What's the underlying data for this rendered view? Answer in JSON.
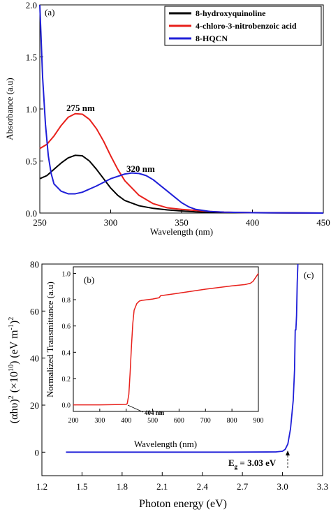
{
  "chart_data": [
    {
      "panel": "(a)",
      "type": "line",
      "xlabel": "Wavelength (nm)",
      "ylabel": "Absorbance (a.u)",
      "xlim": [
        250,
        450
      ],
      "ylim": [
        0,
        2.0
      ],
      "xticks": [
        250,
        300,
        350,
        400,
        450
      ],
      "yticks": [
        0.0,
        0.5,
        1.0,
        1.5,
        2.0
      ],
      "legend_position": "top-right",
      "series": [
        {
          "name": "8-hydroxyquinoline",
          "color": "#000000",
          "x": [
            250,
            255,
            260,
            265,
            270,
            275,
            280,
            285,
            290,
            295,
            300,
            305,
            310,
            320,
            330,
            340,
            350,
            360,
            380,
            400,
            450
          ],
          "y": [
            0.33,
            0.36,
            0.42,
            0.48,
            0.53,
            0.555,
            0.55,
            0.5,
            0.42,
            0.33,
            0.24,
            0.17,
            0.12,
            0.07,
            0.045,
            0.03,
            0.02,
            0.012,
            0.005,
            0.003,
            0.0
          ]
        },
        {
          "name": "4-chloro-3-nitrobenzoic acid",
          "color": "#e8201b",
          "x": [
            250,
            255,
            260,
            265,
            270,
            275,
            280,
            285,
            290,
            295,
            300,
            305,
            310,
            320,
            330,
            340,
            350,
            360,
            370,
            380,
            400,
            450
          ],
          "y": [
            0.62,
            0.66,
            0.74,
            0.84,
            0.92,
            0.955,
            0.95,
            0.9,
            0.81,
            0.69,
            0.55,
            0.42,
            0.31,
            0.17,
            0.09,
            0.05,
            0.035,
            0.025,
            0.015,
            0.008,
            0.004,
            0.0
          ]
        },
        {
          "name": "8-HQCN",
          "color": "#1f1fd8",
          "x": [
            250,
            252,
            254,
            256,
            258,
            260,
            265,
            270,
            275,
            280,
            290,
            300,
            310,
            315,
            320,
            325,
            330,
            340,
            350,
            355,
            360,
            370,
            380,
            400,
            450
          ],
          "y": [
            2.0,
            1.3,
            0.85,
            0.55,
            0.38,
            0.28,
            0.21,
            0.185,
            0.185,
            0.2,
            0.26,
            0.33,
            0.375,
            0.385,
            0.38,
            0.36,
            0.32,
            0.21,
            0.1,
            0.06,
            0.035,
            0.015,
            0.008,
            0.003,
            0.0
          ]
        }
      ],
      "annotations": [
        {
          "text": "275 nm",
          "x": 275,
          "y": 0.98
        },
        {
          "text": "320 nm",
          "x": 320,
          "y": 0.4
        }
      ]
    },
    {
      "panel": "(b)",
      "type": "line",
      "xlabel": "Wavelength (nm)",
      "ylabel": "Normalized Transmittance (a.u)",
      "xlim": [
        200,
        900
      ],
      "ylim": [
        -0.05,
        1.05
      ],
      "xticks": [
        200,
        300,
        400,
        500,
        600,
        700,
        800,
        900
      ],
      "yticks": [
        0.0,
        0.2,
        0.4,
        0.6,
        0.8,
        1.0
      ],
      "series": [
        {
          "name": "",
          "color": "#e8201b",
          "x": [
            200,
            300,
            400,
            404,
            410,
            415,
            420,
            425,
            430,
            440,
            450,
            460,
            500,
            525,
            530,
            600,
            700,
            800,
            850,
            870,
            880,
            890,
            900
          ],
          "y": [
            0.0,
            0.0,
            0.003,
            0.01,
            0.08,
            0.25,
            0.45,
            0.62,
            0.72,
            0.77,
            0.79,
            0.795,
            0.805,
            0.815,
            0.83,
            0.85,
            0.88,
            0.905,
            0.915,
            0.925,
            0.94,
            0.97,
            1.0
          ]
        }
      ],
      "annotations": [
        {
          "text": "404 nm",
          "x": 404,
          "y": 0.0
        }
      ]
    },
    {
      "panel": "(c)",
      "type": "line",
      "xlabel": "Photon energy (eV)",
      "ylabel_parts": [
        "(αhυ)",
        "2",
        " (×10",
        "10",
        ") (eV m",
        "-1",
        ")",
        "2"
      ],
      "xlim": [
        1.2,
        3.3
      ],
      "ylim": [
        -10,
        80
      ],
      "xticks": [
        "1.2",
        "1.5",
        "1.8",
        "2.1",
        "2.4",
        "2.7",
        "3.0",
        "3.3"
      ],
      "yticks": [
        0,
        20,
        40,
        60,
        80
      ],
      "series": [
        {
          "name": "",
          "color": "#1f1fd8",
          "x": [
            1.38,
            2.0,
            2.6,
            2.95,
            3.0,
            3.02,
            3.04,
            3.06,
            3.08,
            3.09,
            3.095,
            3.1,
            3.105,
            3.11,
            3.115
          ],
          "y": [
            0.0,
            0.0,
            0.0,
            0.1,
            0.4,
            1.2,
            3.5,
            10,
            22,
            35,
            52,
            52,
            58,
            72,
            102
          ]
        }
      ],
      "annotations": [
        {
          "text_main": "E",
          "text_sub": "g",
          "text_rest": " = 3.03 eV",
          "x": 3.03,
          "y": 0
        }
      ]
    }
  ]
}
